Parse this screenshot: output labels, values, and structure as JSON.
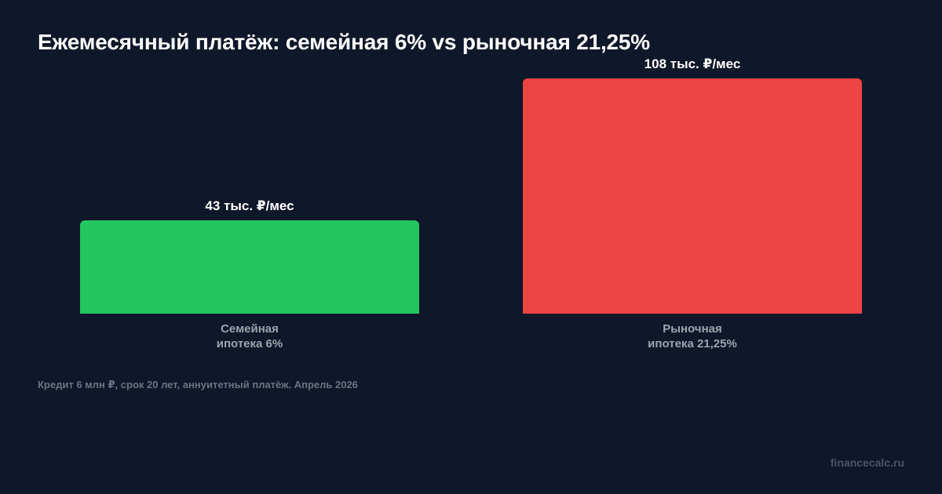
{
  "chart_data": {
    "type": "bar",
    "title": "Ежемесячный платёж: семейная 6% vs рыночная 21,25%",
    "xlabel": "",
    "ylabel": "",
    "ylim": [
      0,
      108
    ],
    "grid": false,
    "unit": "тыс. ₽/мес",
    "categories": [
      {
        "line1": "Семейная",
        "line2": "ипотека 6%"
      },
      {
        "line1": "Рыночная",
        "line2": "ипотека 21,25%"
      }
    ],
    "values": [
      43,
      108
    ],
    "value_labels": [
      "43 тыс. ₽/мес",
      "108 тыс. ₽/мес"
    ],
    "colors": [
      "#22c55e",
      "#ef4444"
    ]
  },
  "footnote": "Кредит 6 млн ₽, срок 20 лет, аннуитетный платёж. Апрель 2026",
  "watermark": "financecalc.ru"
}
